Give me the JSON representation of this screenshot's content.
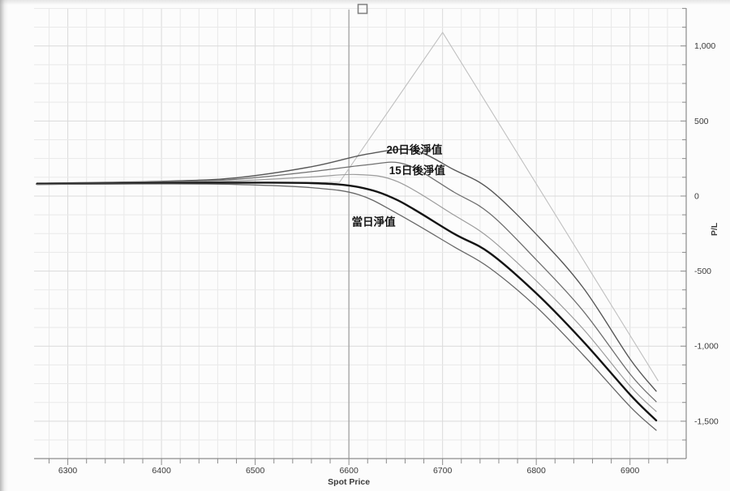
{
  "window": {
    "legend_checkbox": {
      "icon": "empty-square",
      "checked": false
    }
  },
  "chart_data": {
    "type": "line",
    "title": "",
    "xlabel": "Spot Price",
    "ylabel": "P/L",
    "xlim": [
      6264,
      6960
    ],
    "ylim": [
      -1749,
      1252
    ],
    "x_ticks": [
      6300,
      6400,
      6500,
      6600,
      6700,
      6800,
      6900
    ],
    "x_minor_step": 20,
    "y_ticks": [
      {
        "value": 1000,
        "label": "1,000"
      },
      {
        "value": 500,
        "label": "500"
      },
      {
        "value": 0,
        "label": "0"
      },
      {
        "value": -500,
        "label": "-500"
      },
      {
        "value": -1000,
        "label": "-1,000"
      },
      {
        "value": -1500,
        "label": "-1,500"
      }
    ],
    "y_minor_step": 125,
    "grid": true,
    "legend_position": "none",
    "spot_marker": 6600,
    "colors": {
      "grid_minor": "#e9e9e9",
      "grid_major": "#dadada",
      "axis": "#8c8c8c",
      "tick_text": "#3a3a3a",
      "spot_marker": "#9c9c9c",
      "annotation_text": "#161616"
    },
    "annotations": [
      {
        "text": "20日後淨值",
        "spot": 6640,
        "value": 308
      },
      {
        "text": "15日後淨值",
        "spot": 6643,
        "value": 170
      },
      {
        "text": "當日淨值",
        "spot": 6603,
        "value": -172
      }
    ],
    "series": [
      {
        "label": "",
        "role": "expiry-payoff",
        "shape": "linear",
        "color": "#bfbfbf",
        "width": 1.1,
        "points": [
          [
            6267,
            85
          ],
          [
            6450,
            90
          ],
          [
            6590,
            92
          ],
          [
            6700,
            1090
          ],
          [
            6930,
            -1230
          ]
        ]
      },
      {
        "label": "20日後淨值",
        "role": "day20",
        "shape": "smooth",
        "color": "#585858",
        "width": 1.4,
        "points": [
          [
            6267,
            86
          ],
          [
            6400,
            98
          ],
          [
            6480,
            122
          ],
          [
            6560,
            195
          ],
          [
            6620,
            280
          ],
          [
            6668,
            306
          ],
          [
            6712,
            176
          ],
          [
            6750,
            45
          ],
          [
            6800,
            -255
          ],
          [
            6850,
            -610
          ],
          [
            6900,
            -1085
          ],
          [
            6928,
            -1300
          ]
        ]
      },
      {
        "label": "15日後淨值",
        "role": "day15",
        "shape": "smooth",
        "color": "#6f6f6f",
        "width": 1.3,
        "points": [
          [
            6267,
            84
          ],
          [
            6400,
            95
          ],
          [
            6480,
            112
          ],
          [
            6560,
            162
          ],
          [
            6618,
            207
          ],
          [
            6660,
            212
          ],
          [
            6712,
            27
          ],
          [
            6750,
            -115
          ],
          [
            6800,
            -425
          ],
          [
            6850,
            -765
          ],
          [
            6900,
            -1185
          ],
          [
            6928,
            -1370
          ]
        ]
      },
      {
        "label": "",
        "role": "mid-curve",
        "shape": "smooth",
        "color": "#9b9b9b",
        "width": 1.2,
        "points": [
          [
            6267,
            82
          ],
          [
            6400,
            90
          ],
          [
            6480,
            101
          ],
          [
            6560,
            127
          ],
          [
            6610,
            143
          ],
          [
            6652,
            96
          ],
          [
            6712,
            -126
          ],
          [
            6750,
            -280
          ],
          [
            6800,
            -565
          ],
          [
            6850,
            -885
          ],
          [
            6900,
            -1265
          ],
          [
            6928,
            -1435
          ]
        ]
      },
      {
        "label": "當日淨值",
        "role": "today",
        "shape": "smooth",
        "color": "#141414",
        "width": 2.4,
        "points": [
          [
            6267,
            80
          ],
          [
            6400,
            86
          ],
          [
            6480,
            89
          ],
          [
            6560,
            86
          ],
          [
            6610,
            60
          ],
          [
            6652,
            -28
          ],
          [
            6712,
            -250
          ],
          [
            6750,
            -378
          ],
          [
            6800,
            -648
          ],
          [
            6850,
            -968
          ],
          [
            6900,
            -1322
          ],
          [
            6928,
            -1495
          ]
        ]
      },
      {
        "label": "",
        "role": "lower-curve",
        "shape": "smooth",
        "color": "#676767",
        "width": 1.3,
        "points": [
          [
            6267,
            78
          ],
          [
            6400,
            81
          ],
          [
            6480,
            77
          ],
          [
            6560,
            56
          ],
          [
            6610,
            10
          ],
          [
            6652,
            -118
          ],
          [
            6712,
            -337
          ],
          [
            6750,
            -478
          ],
          [
            6800,
            -738
          ],
          [
            6850,
            -1058
          ],
          [
            6900,
            -1402
          ],
          [
            6928,
            -1560
          ]
        ]
      }
    ]
  }
}
